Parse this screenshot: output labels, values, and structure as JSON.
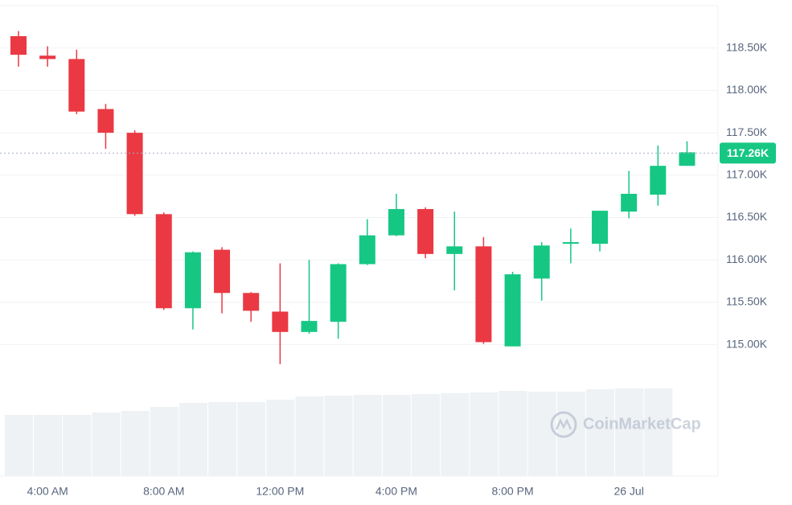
{
  "chart_data": {
    "type": "candlestick",
    "x": [
      null,
      "4:00 AM",
      null,
      null,
      null,
      "8:00 AM",
      null,
      null,
      null,
      "12:00 PM",
      null,
      null,
      null,
      "4:00 PM",
      null,
      null,
      null,
      "8:00 PM",
      null,
      null,
      null,
      "26 Jul",
      null,
      null
    ],
    "open": [
      118640,
      118410,
      118370,
      117780,
      117500,
      116540,
      115430,
      116120,
      115610,
      115390,
      115150,
      115270,
      115950,
      116290,
      116600,
      116070,
      116160,
      114980,
      115780,
      116190,
      116190,
      116570,
      116770,
      117110
    ],
    "high": [
      118700,
      118520,
      118480,
      117840,
      117530,
      116560,
      116100,
      116150,
      115620,
      115960,
      116000,
      115960,
      116480,
      116780,
      116620,
      116570,
      116270,
      115860,
      116210,
      116370,
      116580,
      117050,
      117350,
      117400
    ],
    "low": [
      118280,
      118280,
      117720,
      117310,
      116520,
      115410,
      115180,
      115370,
      115270,
      114770,
      115130,
      115070,
      115940,
      116280,
      116020,
      115640,
      115010,
      114980,
      115520,
      115960,
      116100,
      116490,
      116640,
      117110
    ],
    "close": [
      118420,
      118370,
      117750,
      117500,
      116540,
      115430,
      116090,
      115610,
      115400,
      115150,
      115280,
      115950,
      116290,
      116600,
      116070,
      116160,
      115030,
      115830,
      116170,
      116210,
      116580,
      116780,
      117110,
      117270
    ],
    "volume": [
      76,
      76,
      76,
      79,
      81,
      86,
      91,
      92,
      92,
      95,
      99,
      100,
      101,
      101,
      102,
      103,
      104,
      106,
      105,
      105,
      108,
      109,
      109,
      null
    ],
    "up_color": "#16c784",
    "down_color": "#ea3943",
    "volume_color": "#eff2f5",
    "ylim": [
      113450,
      119000
    ],
    "yticks": [
      {
        "value": 115000,
        "label": "115.00K"
      },
      {
        "value": 115500,
        "label": "115.50K"
      },
      {
        "value": 116000,
        "label": "116.00K"
      },
      {
        "value": 116500,
        "label": "116.50K"
      },
      {
        "value": 117000,
        "label": "117.00K"
      },
      {
        "value": 117500,
        "label": "117.50K"
      },
      {
        "value": 118000,
        "label": "118.00K"
      },
      {
        "value": 118500,
        "label": "118.50K"
      }
    ],
    "last_price": {
      "value": 117260,
      "label": "117.26K"
    },
    "watermark": "CoinMarketCap",
    "grid": true
  }
}
